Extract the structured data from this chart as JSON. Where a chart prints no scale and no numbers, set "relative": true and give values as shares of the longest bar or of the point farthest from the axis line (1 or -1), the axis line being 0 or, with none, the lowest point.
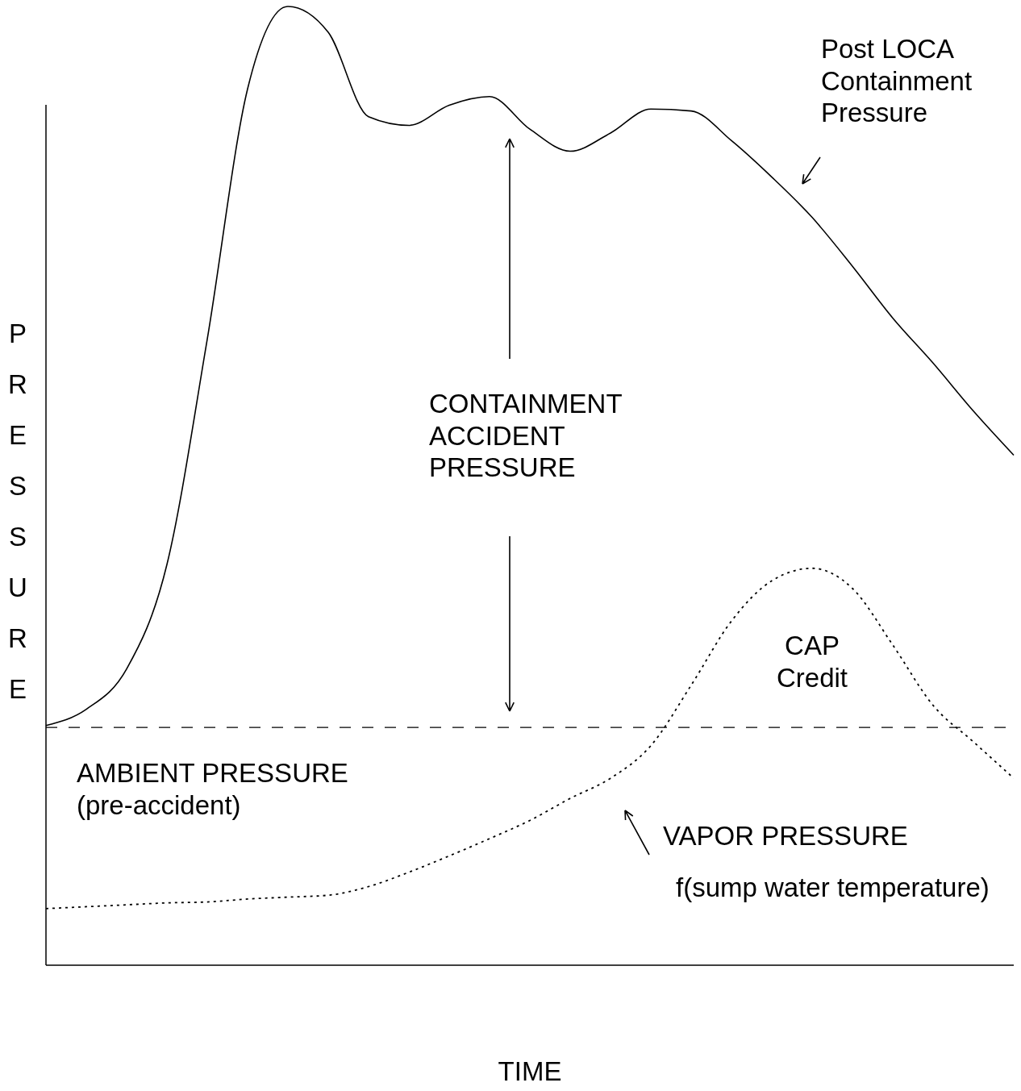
{
  "chart_data": {
    "type": "line",
    "relative": true,
    "xlabel": "TIME",
    "ylabel": "PRESSURE",
    "categories": [
      null,
      null,
      null,
      null,
      null,
      null,
      null,
      null,
      null,
      null,
      null,
      null,
      null,
      null,
      null,
      null,
      null,
      null,
      null,
      null,
      null,
      null,
      null,
      null,
      null
    ],
    "series": [
      {
        "name": "Post LOCA\nContainment\nPressure",
        "color": "#000000",
        "line_style": "solid",
        "values": [
          0.25,
          0.267,
          0.309,
          0.418,
          0.653,
          0.914,
          1,
          0.973,
          0.885,
          0.876,
          0.897,
          0.906,
          0.872,
          0.849,
          0.868,
          0.893,
          0.891,
          0.86,
          0.822,
          0.78,
          0.729,
          0.675,
          0.628,
          0.578,
          0.532
        ]
      },
      {
        "name": "VAPOR PRESSURE",
        "color": "#000000",
        "line_style": "dotted",
        "values": [
          0.059,
          0.061,
          0.063,
          0.065,
          0.066,
          0.069,
          0.071,
          0.073,
          0.082,
          0.097,
          0.114,
          0.132,
          0.151,
          0.174,
          0.195,
          0.229,
          0.292,
          0.359,
          0.401,
          0.414,
          0.393,
          0.334,
          0.271,
          0.233,
          0.195
        ]
      }
    ],
    "ref_lines": [
      {
        "axis": "y",
        "value": 0.248,
        "label": "AMBIENT PRESSURE\n(pre-accident)",
        "color": "#000000",
        "line_style": "dashed"
      }
    ],
    "annotations": [
      "CONTAINMENT\nACCIDENT\nPRESSURE",
      "CAP\nCredit",
      "f(sump water temperature)"
    ]
  }
}
